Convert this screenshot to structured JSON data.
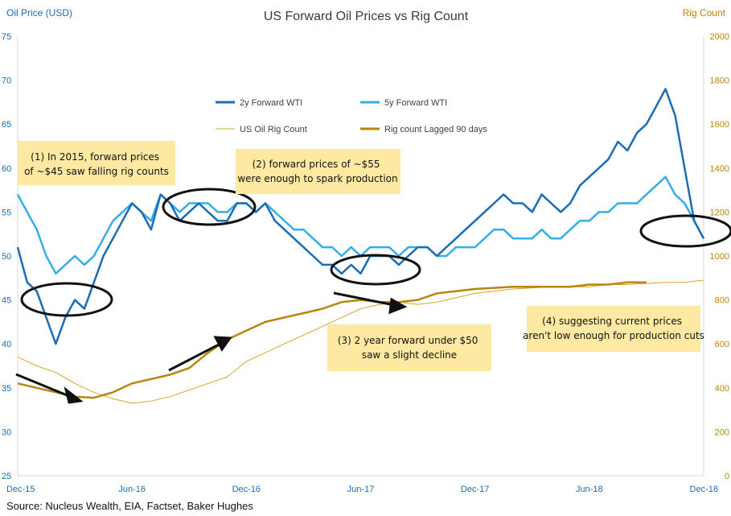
{
  "chart_data": {
    "type": "line",
    "title": "US Forward Oil Prices vs Rig Count",
    "left_axis": {
      "label": "Oil Price (USD)",
      "range": [
        25,
        75
      ],
      "ticks": [
        "25",
        "30",
        "35",
        "40",
        "45",
        "50",
        "55",
        "60",
        "65",
        "70",
        "75"
      ]
    },
    "right_axis": {
      "label": "Rig Count",
      "range": [
        0,
        2000
      ],
      "ticks": [
        "0",
        "200",
        "400",
        "600",
        "800",
        "1000",
        "1200",
        "1400",
        "1600",
        "1800",
        "2000"
      ]
    },
    "x_axis": {
      "ticks": [
        "Dec-15",
        "Jun-16",
        "Dec-16",
        "Jun-17",
        "Dec-17",
        "Jun-18",
        "Dec-18"
      ],
      "tick_months": [
        0,
        6,
        12,
        18,
        24,
        30,
        36
      ]
    },
    "grid": false,
    "legend": {
      "placement": "top-center",
      "items": [
        "2y Forward WTI",
        "5y Forward WTI",
        "US Oil Rig Count",
        "Rig count Lagged 90 days"
      ]
    },
    "colors": {
      "wti2y": "#1a6db5",
      "wti5y": "#33aee8",
      "rig": "#d4a62a",
      "rig_lag": "#b8860b",
      "axis_left": "#1a6db5",
      "axis_right": "#b8860b",
      "note": "#fde9a2"
    },
    "series": [
      {
        "name": "2y Forward WTI",
        "axis": "left",
        "x": [
          0,
          0.5,
          1,
          1.5,
          2,
          2.5,
          3,
          3.5,
          4,
          4.5,
          5,
          5.5,
          6,
          6.5,
          7,
          7.5,
          8,
          8.5,
          9,
          9.5,
          10,
          10.5,
          11,
          11.5,
          12,
          12.5,
          13,
          13.5,
          14,
          14.5,
          15,
          15.5,
          16,
          16.5,
          17,
          17.5,
          18,
          18.5,
          19,
          19.5,
          20,
          20.5,
          21,
          21.5,
          22,
          22.5,
          23,
          23.5,
          24,
          24.5,
          25,
          25.5,
          26,
          26.5,
          27,
          27.5,
          28,
          28.5,
          29,
          29.5,
          30,
          30.5,
          31,
          31.5,
          32,
          32.5,
          33,
          33.5,
          34,
          34.5,
          35,
          35.5,
          36
        ],
        "y": [
          51,
          47,
          46,
          43,
          40,
          43,
          45,
          44,
          47,
          50,
          52,
          54,
          56,
          55,
          53,
          57,
          56,
          54,
          55,
          56,
          55,
          54,
          54,
          56,
          56,
          55,
          56,
          54,
          53,
          52,
          51,
          50,
          49,
          49,
          48,
          49,
          48,
          50,
          50,
          50,
          49,
          50,
          51,
          51,
          50,
          51,
          52,
          53,
          54,
          55,
          56,
          57,
          56,
          56,
          55,
          57,
          56,
          55,
          56,
          58,
          59,
          60,
          61,
          63,
          62,
          64,
          65,
          67,
          69,
          66,
          60,
          54,
          52
        ]
      },
      {
        "name": "5y Forward WTI",
        "axis": "left",
        "x": [
          0,
          0.5,
          1,
          1.5,
          2,
          2.5,
          3,
          3.5,
          4,
          4.5,
          5,
          5.5,
          6,
          6.5,
          7,
          7.5,
          8,
          8.5,
          9,
          9.5,
          10,
          10.5,
          11,
          11.5,
          12,
          12.5,
          13,
          13.5,
          14,
          14.5,
          15,
          15.5,
          16,
          16.5,
          17,
          17.5,
          18,
          18.5,
          19,
          19.5,
          20,
          20.5,
          21,
          21.5,
          22,
          22.5,
          23,
          23.5,
          24,
          24.5,
          25,
          25.5,
          26,
          26.5,
          27,
          27.5,
          28,
          28.5,
          29,
          29.5,
          30,
          30.5,
          31,
          31.5,
          32,
          32.5,
          33,
          33.5,
          34,
          34.5,
          35,
          35.5,
          36
        ],
        "y": [
          57,
          55,
          53,
          50,
          48,
          49,
          50,
          49,
          50,
          52,
          54,
          55,
          56,
          55,
          54,
          57,
          56,
          55,
          56,
          56,
          56,
          55,
          55,
          56,
          56,
          55,
          56,
          55,
          54,
          53,
          53,
          52,
          51,
          51,
          50,
          51,
          50,
          51,
          51,
          51,
          50,
          51,
          51,
          51,
          50,
          50,
          51,
          51,
          51,
          52,
          53,
          53,
          52,
          52,
          52,
          53,
          52,
          52,
          53,
          54,
          54,
          55,
          55,
          56,
          56,
          56,
          57,
          58,
          59,
          57,
          56,
          54,
          52
        ]
      },
      {
        "name": "US Oil Rig Count",
        "axis": "right",
        "x": [
          0,
          1,
          2,
          3,
          4,
          5,
          6,
          7,
          8,
          9,
          10,
          11,
          12,
          13,
          14,
          15,
          16,
          17,
          18,
          19,
          20,
          21,
          22,
          23,
          24,
          25,
          26,
          27,
          28,
          29,
          30,
          31,
          32,
          33,
          34,
          35,
          36
        ],
        "y": [
          540,
          500,
          470,
          420,
          380,
          350,
          330,
          340,
          360,
          390,
          420,
          450,
          520,
          560,
          600,
          640,
          680,
          720,
          760,
          780,
          790,
          780,
          790,
          810,
          830,
          840,
          850,
          855,
          860,
          860,
          860,
          870,
          870,
          875,
          880,
          880,
          890
        ]
      },
      {
        "name": "Rig count Lagged 90 days",
        "axis": "right",
        "x": [
          0,
          1,
          2,
          3,
          4,
          5,
          6,
          7,
          8,
          9,
          10,
          11,
          12,
          13,
          14,
          15,
          16,
          17,
          18,
          19,
          20,
          21,
          22,
          23,
          24,
          25,
          26,
          27,
          28,
          29,
          30,
          31,
          32,
          33
        ],
        "y": [
          420,
          400,
          380,
          360,
          355,
          380,
          420,
          440,
          460,
          490,
          560,
          620,
          660,
          700,
          720,
          740,
          760,
          790,
          800,
          790,
          790,
          800,
          830,
          840,
          850,
          855,
          860,
          860,
          860,
          860,
          870,
          870,
          880,
          880
        ]
      }
    ],
    "annotations": [
      "(1) In 2015, forward prices of ~$45 saw falling rig counts",
      "(2) forward prices of ~$55 were enough to spark production",
      "(3) 2 year forward under $50 saw a slight decline",
      "(4) suggesting current prices aren't low enough for production cuts"
    ]
  },
  "source": "Source: Nucleus Wealth,  EIA, Factset, Baker Hughes"
}
